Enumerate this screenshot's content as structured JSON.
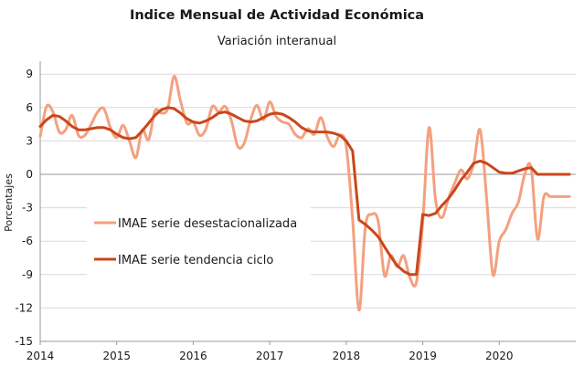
{
  "chart_data": {
    "type": "line",
    "title": "Indice Mensual de  Actividad Económica",
    "subtitle": "Variación interanual",
    "ylabel": "Porcentajes",
    "xlabel": "",
    "ylim": [
      -15,
      10
    ],
    "xlim": [
      2014,
      2021
    ],
    "yticks": [
      9,
      6,
      3,
      0,
      -3,
      -6,
      -9,
      -12,
      -15
    ],
    "xticks": [
      2014,
      2015,
      2016,
      2017,
      2018,
      2019,
      2020
    ],
    "grid": "horizontal",
    "legend_position": "center-left",
    "series": [
      {
        "name": "IMAE serie desestacionalizada",
        "color": "#f4a07f",
        "x": [
          2014.0,
          2014.083,
          2014.167,
          2014.25,
          2014.333,
          2014.417,
          2014.5,
          2014.583,
          2014.667,
          2014.75,
          2014.833,
          2014.917,
          2015.0,
          2015.083,
          2015.167,
          2015.25,
          2015.333,
          2015.417,
          2015.5,
          2015.583,
          2015.667,
          2015.75,
          2015.833,
          2015.917,
          2016.0,
          2016.083,
          2016.167,
          2016.25,
          2016.333,
          2016.417,
          2016.5,
          2016.583,
          2016.667,
          2016.75,
          2016.833,
          2016.917,
          2017.0,
          2017.083,
          2017.167,
          2017.25,
          2017.333,
          2017.417,
          2017.5,
          2017.583,
          2017.667,
          2017.75,
          2017.833,
          2017.917,
          2018.0,
          2018.083,
          2018.167,
          2018.25,
          2018.333,
          2018.417,
          2018.5,
          2018.583,
          2018.667,
          2018.75,
          2018.833,
          2018.917,
          2019.0,
          2019.083,
          2019.167,
          2019.25,
          2019.333,
          2019.417,
          2019.5,
          2019.583,
          2019.667,
          2019.75,
          2019.833,
          2019.917,
          2020.0,
          2020.083,
          2020.167,
          2020.25,
          2020.333,
          2020.417,
          2020.5,
          2020.583,
          2020.667,
          2020.75,
          2020.833,
          2020.917
        ],
        "values": [
          3.4,
          6.1,
          5.6,
          3.8,
          4.0,
          5.3,
          3.5,
          3.5,
          4.5,
          5.6,
          5.9,
          4.2,
          3.3,
          4.4,
          3.0,
          1.5,
          4.0,
          3.1,
          5.7,
          5.5,
          5.9,
          8.8,
          6.6,
          4.6,
          4.7,
          3.5,
          4.1,
          6.1,
          5.6,
          6.1,
          4.8,
          2.5,
          2.8,
          4.9,
          6.2,
          4.9,
          6.5,
          5.2,
          4.7,
          4.5,
          3.6,
          3.3,
          4.1,
          3.6,
          5.1,
          3.4,
          2.5,
          3.5,
          2.5,
          -4.0,
          -12.2,
          -4.7,
          -3.6,
          -4.2,
          -9.1,
          -7.3,
          -8.3,
          -7.3,
          -9.3,
          -9.7,
          -4.3,
          4.2,
          -2.3,
          -3.9,
          -2.2,
          -0.8,
          0.4,
          -0.4,
          1.0,
          4.0,
          -2.0,
          -9.0,
          -6.0,
          -5.0,
          -3.5,
          -2.5,
          0.0,
          0.6,
          -5.8,
          -2.0,
          -2.0,
          -2.0,
          -2.0,
          -2.0
        ]
      },
      {
        "name": "IMAE serie  tendencia ciclo",
        "color": "#c9471b",
        "x": [
          2014.0,
          2014.083,
          2014.167,
          2014.25,
          2014.333,
          2014.417,
          2014.5,
          2014.583,
          2014.667,
          2014.75,
          2014.833,
          2014.917,
          2015.0,
          2015.083,
          2015.167,
          2015.25,
          2015.333,
          2015.417,
          2015.5,
          2015.583,
          2015.667,
          2015.75,
          2015.833,
          2015.917,
          2016.0,
          2016.083,
          2016.167,
          2016.25,
          2016.333,
          2016.417,
          2016.5,
          2016.583,
          2016.667,
          2016.75,
          2016.833,
          2016.917,
          2017.0,
          2017.083,
          2017.167,
          2017.25,
          2017.333,
          2017.417,
          2017.5,
          2017.583,
          2017.667,
          2017.75,
          2017.833,
          2017.917,
          2018.0,
          2018.083,
          2018.167,
          2018.25,
          2018.333,
          2018.417,
          2018.5,
          2018.583,
          2018.667,
          2018.75,
          2018.833,
          2018.917,
          2019.0,
          2019.083,
          2019.167,
          2019.25,
          2019.333,
          2019.417,
          2019.5,
          2019.583,
          2019.667,
          2019.75,
          2019.833,
          2019.917,
          2020.0,
          2020.083,
          2020.167,
          2020.25,
          2020.333,
          2020.417,
          2020.5,
          2020.583,
          2020.667,
          2020.75,
          2020.833,
          2020.917
        ],
        "values": [
          4.3,
          4.9,
          5.3,
          5.2,
          4.8,
          4.3,
          4.0,
          4.0,
          4.1,
          4.2,
          4.2,
          4.0,
          3.6,
          3.3,
          3.2,
          3.3,
          3.9,
          4.6,
          5.3,
          5.8,
          6.0,
          5.9,
          5.5,
          5.0,
          4.7,
          4.6,
          4.8,
          5.1,
          5.5,
          5.6,
          5.4,
          5.1,
          4.8,
          4.7,
          4.8,
          5.1,
          5.4,
          5.5,
          5.4,
          5.1,
          4.7,
          4.2,
          3.9,
          3.8,
          3.8,
          3.8,
          3.7,
          3.5,
          3.0,
          2.1,
          -4.1,
          -4.5,
          -5.0,
          -5.6,
          -6.5,
          -7.4,
          -8.2,
          -8.7,
          -9.0,
          -9.0,
          -3.6,
          -3.7,
          -3.5,
          -2.8,
          -2.2,
          -1.4,
          -0.5,
          0.2,
          1.0,
          1.2,
          1.0,
          0.6,
          0.2,
          0.1,
          0.1,
          0.3,
          0.5,
          0.6,
          0.0,
          0.0,
          0.0,
          0.0,
          0.0,
          0.0
        ]
      }
    ]
  }
}
